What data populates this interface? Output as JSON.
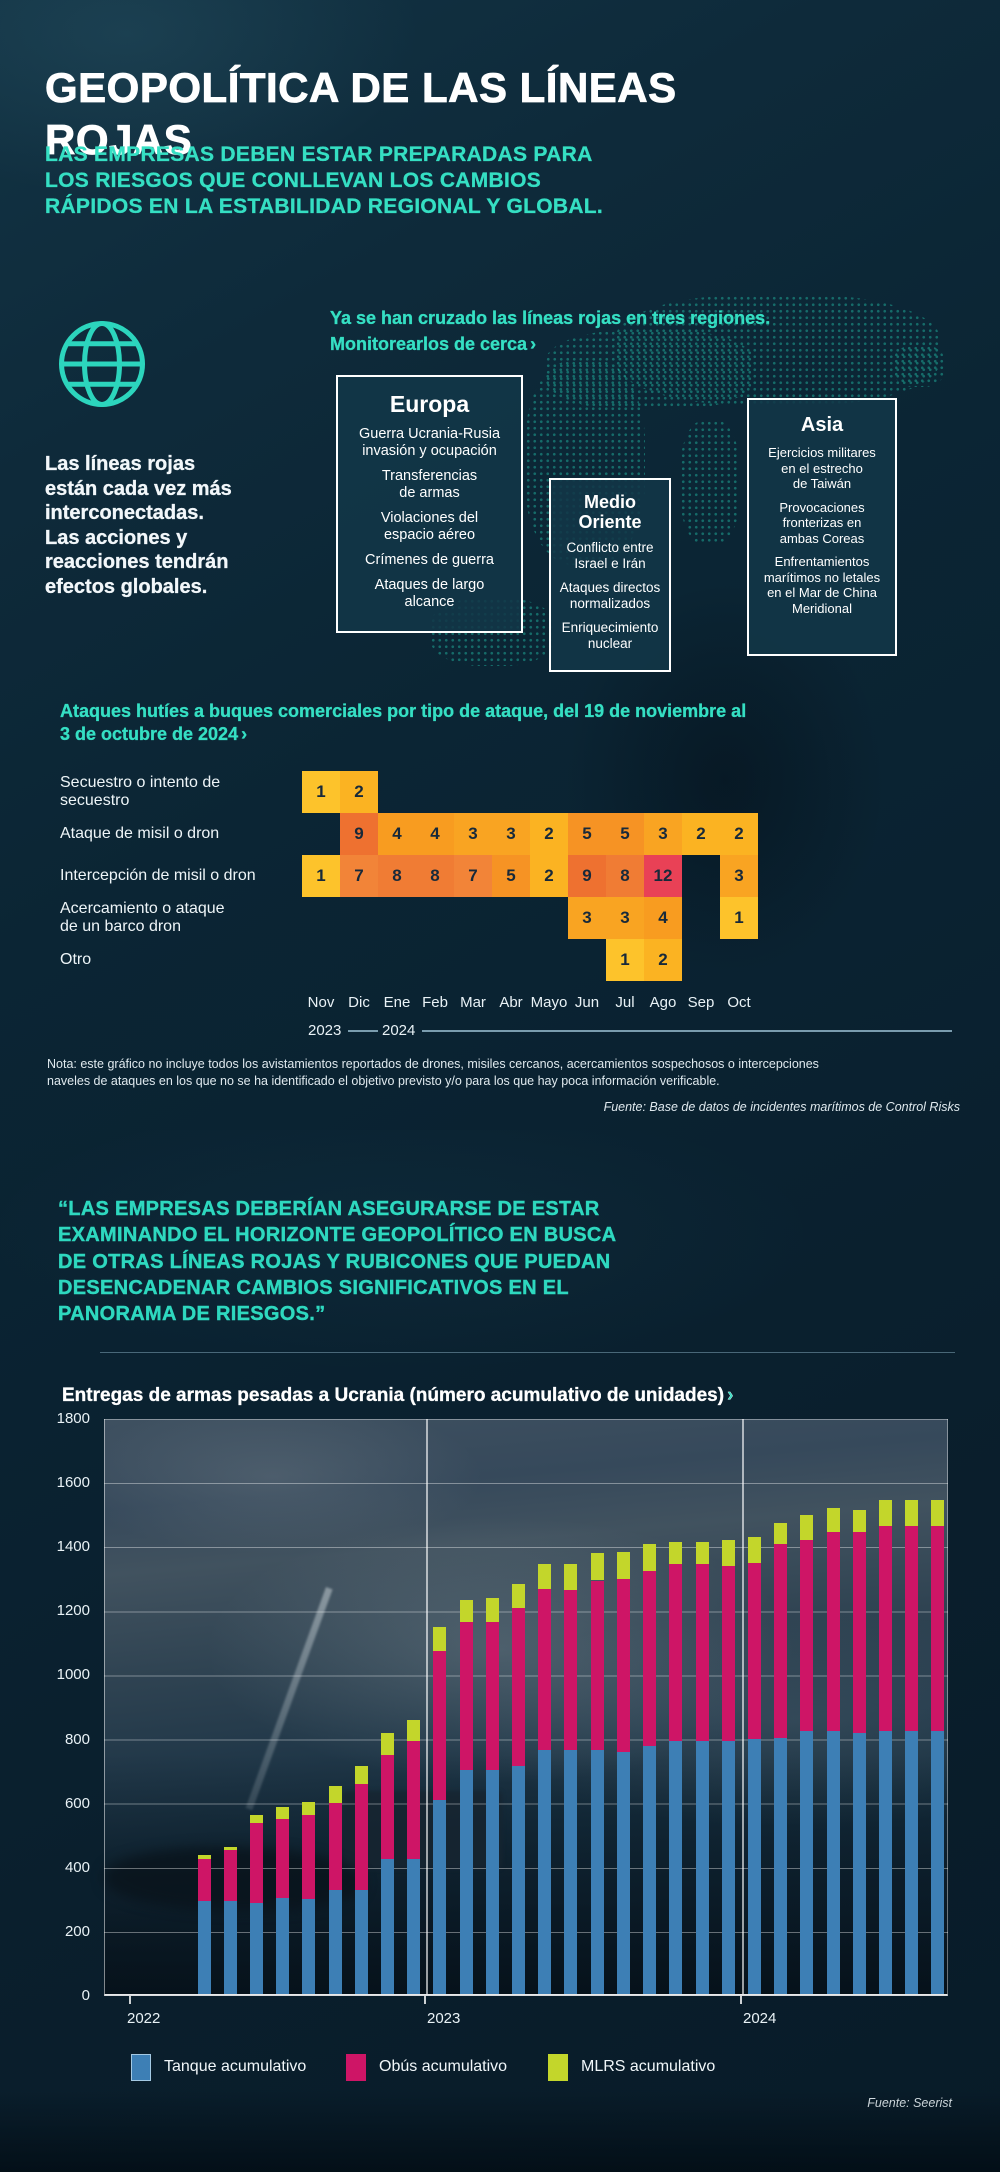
{
  "colors": {
    "accent_teal": "#35dfc3",
    "background_dark": "#0a2231",
    "box_fill": "#123748",
    "box_border": "#ffffff"
  },
  "icons": {
    "chevron": "›",
    "globe": "globe-icon"
  },
  "header": {
    "title": "GEOPOLÍTICA DE LAS LÍNEAS ROJAS",
    "subtitle_lines": [
      "LAS EMPRESAS DEBEN ESTAR PREPARADAS PARA",
      "LOS RIESGOS QUE CONLLEVAN LOS CAMBIOS",
      "RÁPIDOS EN LA ESTABILIDAD REGIONAL Y GLOBAL."
    ]
  },
  "intro": {
    "lead_lines": [
      "Ya se han cruzado las líneas rojas en tres regiones.",
      "Monitorearlos de cerca"
    ],
    "side_note_lines": [
      "Las líneas rojas",
      "están cada vez más",
      "interconectadas.",
      "Las acciones y",
      "reacciones tendrán",
      "efectos globales."
    ],
    "regions": [
      {
        "name": "Europa",
        "items": [
          "Guerra Ucrania-Rusia\ninvasión y ocupación",
          "Transferencias\nde armas",
          "Violaciones del\nespacio aéreo",
          "Crímenes de guerra",
          "Ataques de largo\nalcance"
        ]
      },
      {
        "name": "Medio Oriente",
        "items": [
          "Conflicto entre\nIsrael e Irán",
          "Ataques directos\nnormalizados",
          "Enriquecimiento\nnuclear"
        ]
      },
      {
        "name": "Asia",
        "items": [
          "Ejercicios militares\nen el estrecho\nde Taiwán",
          "Provocaciones\nfronterizas en\nambas Coreas",
          "Enfrentamientos\nmarítimos no letales\nen el Mar de China\nMeridional"
        ]
      }
    ]
  },
  "quote_lines": [
    "“LAS EMPRESAS DEBERÍAN ASEGURARSE DE ESTAR",
    "EXAMINANDO EL HORIZONTE GEOPOLÍTICO EN BUSCA",
    "DE OTRAS LÍNEAS ROJAS Y RUBICONES QUE PUEDAN",
    "DESENCADENAR CAMBIOS SIGNIFICATIVOS EN EL",
    "PANORAMA DE RIESGOS.”"
  ],
  "chart_data": [
    {
      "type": "heatmap",
      "title_lines": [
        "Ataques hutíes a buques comerciales por tipo de ataque, del 19 de noviembre al",
        "3 de octubre de 2024"
      ],
      "columns": [
        "Nov",
        "Dic",
        "Ene",
        "Feb",
        "Mar",
        "Abr",
        "Mayo",
        "Jun",
        "Jul",
        "Ago",
        "Sep",
        "Oct"
      ],
      "year_markers": [
        {
          "label": "2023"
        },
        {
          "label": "2024"
        }
      ],
      "rows": [
        {
          "label": "Secuestro o intento de secuestro",
          "values": [
            1,
            2,
            null,
            null,
            null,
            null,
            null,
            null,
            null,
            null,
            null,
            null
          ]
        },
        {
          "label": "Ataque de misil o dron",
          "values": [
            null,
            9,
            4,
            4,
            3,
            3,
            2,
            5,
            5,
            3,
            2,
            2
          ]
        },
        {
          "label": "Intercepción de misil o dron",
          "values": [
            1,
            7,
            8,
            8,
            7,
            5,
            2,
            9,
            8,
            12,
            null,
            3
          ]
        },
        {
          "label": "Acercamiento o ataque\nde un barco dron",
          "values": [
            null,
            null,
            null,
            null,
            null,
            null,
            null,
            3,
            3,
            4,
            null,
            1
          ]
        },
        {
          "label": "Otro",
          "values": [
            null,
            null,
            null,
            null,
            null,
            null,
            null,
            null,
            1,
            2,
            null,
            null
          ]
        }
      ],
      "color_scale": {
        "1": "#FDC32B",
        "2": "#FBB322",
        "3": "#F9A422",
        "4": "#F89C20",
        "5": "#F69324",
        "7": "#F28438",
        "8": "#F07C34",
        "9": "#EE7130",
        "12": "#E94156"
      },
      "note_lines": [
        "Nota: este gráfico no incluye todos los avistamientos reportados de drones, misiles cercanos, acercamientos sospechosos o intercepciones",
        "naveles de ataques en los que no se ha identificado el objetivo previsto y/o para los que hay poca información verificable."
      ],
      "source": "Fuente: Base de datos de incidentes marítimos de Control Risks"
    },
    {
      "type": "bar",
      "stacked": true,
      "title": "Entregas de armas pesadas a Ucrania (número acumulativo de unidades)",
      "ylim": [
        0,
        1800
      ],
      "yticks": [
        0,
        200,
        400,
        600,
        800,
        1000,
        1200,
        1400,
        1600,
        1800
      ],
      "grid": true,
      "legend_position": "bottom",
      "x_year_labels": [
        "2022",
        "2023",
        "2024"
      ],
      "bars_per_year": [
        9,
        12,
        8
      ],
      "series": [
        {
          "name": "Tanque acumulativo",
          "color": "#3D7FB5",
          "values": [
            290,
            290,
            285,
            300,
            295,
            325,
            325,
            420,
            420,
            605,
            700,
            700,
            710,
            760,
            760,
            760,
            755,
            775,
            790,
            790,
            790,
            795,
            800,
            820,
            820,
            815,
            820,
            820,
            820
          ]
        },
        {
          "name": "Obús acumulativo",
          "color": "#CE1566",
          "values": [
            130,
            160,
            250,
            245,
            265,
            270,
            330,
            325,
            370,
            465,
            460,
            460,
            495,
            505,
            500,
            530,
            540,
            545,
            550,
            550,
            545,
            550,
            605,
            595,
            620,
            625,
            640,
            640,
            640
          ]
        },
        {
          "name": "MLRS acumulativo",
          "color": "#C3D62B",
          "values": [
            15,
            10,
            25,
            40,
            40,
            55,
            55,
            70,
            65,
            75,
            70,
            75,
            75,
            75,
            80,
            85,
            85,
            85,
            70,
            70,
            80,
            80,
            65,
            80,
            75,
            70,
            80,
            80,
            80
          ]
        }
      ],
      "source": "Fuente: Seerist"
    }
  ]
}
